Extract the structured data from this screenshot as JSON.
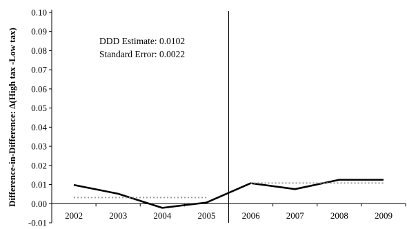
{
  "chart_data": {
    "type": "line",
    "x": [
      "2002",
      "2003",
      "2004",
      "2005",
      "2006",
      "2007",
      "2008",
      "2009"
    ],
    "series": [
      {
        "style": "solid",
        "color": "#000000",
        "values": [
          0.0098,
          0.0052,
          -0.0022,
          0.0006,
          0.0107,
          0.0076,
          0.0125,
          0.0125
        ]
      },
      {
        "style": "dotted",
        "color": "#9a9a9a",
        "segments": [
          {
            "from": "2002",
            "to": "2005",
            "value": 0.0032
          },
          {
            "from": "2006",
            "to": "2009",
            "value": 0.0108
          }
        ]
      }
    ],
    "ylim": [
      -0.01,
      0.1
    ],
    "yticks": [
      "-0.01",
      "0.00",
      "0.01",
      "0.02",
      "0.03",
      "0.04",
      "0.05",
      "0.06",
      "0.07",
      "0.08",
      "0.09",
      "0.10"
    ],
    "ylabel": "Difference-in-Difference: Δ(High tax -Low tax)",
    "xlabel": "",
    "title": "",
    "reference_line_between": [
      "2005",
      "2006"
    ],
    "annotations": [
      "DDD Estimate: 0.0102",
      "Standard Error: 0.0022"
    ],
    "grid": false,
    "legend": "none"
  }
}
